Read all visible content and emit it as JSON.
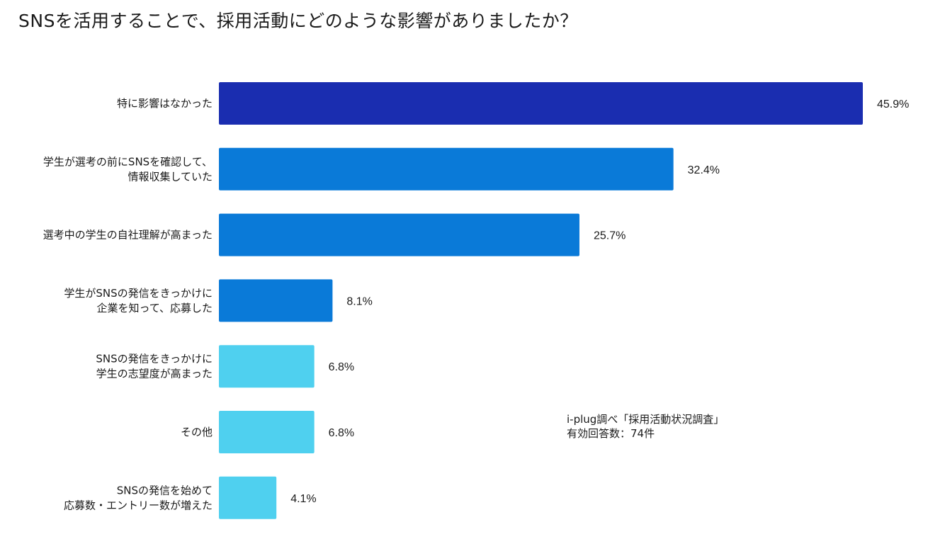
{
  "chart_data": {
    "type": "bar",
    "orientation": "horizontal",
    "title": "SNSを活用することで、採用活動にどのような影響がありましたか？",
    "categories": [
      [
        "特に影響はなかった"
      ],
      [
        "学生が選考の前にSNSを確認して、",
        "情報収集していた"
      ],
      [
        "選考中の学生の自社理解が高まった"
      ],
      [
        "学生がSNSの発信をきっかけに",
        "企業を知って、応募した"
      ],
      [
        "SNSの発信をきっかけに",
        "学生の志望度が高まった"
      ],
      [
        "その他"
      ],
      [
        "SNSの発信を始めて",
        "応募数・エントリー数が増えた"
      ]
    ],
    "values": [
      45.9,
      32.4,
      25.7,
      8.1,
      6.8,
      6.8,
      4.1
    ],
    "value_labels": [
      "45.9%",
      "32.4%",
      "25.7%",
      "8.1%",
      "6.8%",
      "6.8%",
      "4.1%"
    ],
    "colors": [
      "#1a2db0",
      "#0a7ad8",
      "#0a7ad8",
      "#0a7ad8",
      "#4fd0ef",
      "#4fd0ef",
      "#4fd0ef"
    ],
    "xlim": [
      0,
      45.9
    ],
    "grid": false,
    "legend": "none",
    "xlabel": "",
    "ylabel": ""
  },
  "note": {
    "line1": "i-plug調べ「採用活動状況調査」",
    "line2": "有効回答数：74件"
  }
}
